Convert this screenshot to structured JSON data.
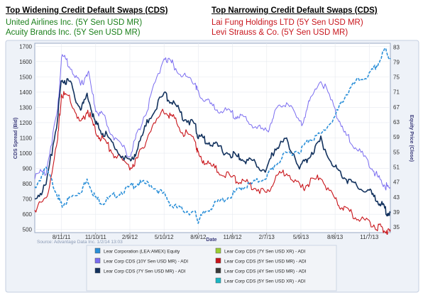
{
  "header": {
    "left_title": "Top Widening Credit Default Swaps (CDS)",
    "left_items": [
      "United Airlines Inc. (5Y Sen USD MR)",
      "Acuity Brands Inc. (5Y Sen USD MR)"
    ],
    "right_title": "Top Narrowing Credit Default Swaps (CDS)",
    "right_items": [
      "Lai Fung Holdings LTD (5Y Sen USD MR)",
      "Levi Strauss & Co. (5Y Sen USD MR)"
    ]
  },
  "colors": {
    "equity": "#2a8fd8",
    "cds10y": "#7a6cf0",
    "cds7y": "#13325e",
    "cds5y": "#c8141a",
    "panel": "#d0dcec",
    "green": "#1a7f1a",
    "red": "#c8161d"
  },
  "chart_data": {
    "type": "line",
    "ylabel": "CDS Spread (Bid)",
    "y2label": "Equity Price (Close)",
    "xlabel": "Date",
    "source": "Source: Advantage Data Inc. 1/2/14 13:03",
    "ylim": [
      480,
      1720
    ],
    "y2lim": [
      33.5,
      84
    ],
    "yticks": [
      500,
      600,
      700,
      800,
      900,
      1000,
      1100,
      1200,
      1300,
      1400,
      1500,
      1600,
      1700
    ],
    "y2ticks": [
      35,
      39,
      43,
      47,
      51,
      55,
      59,
      63,
      67,
      71,
      75,
      79,
      83
    ],
    "xlim": [
      "2011-06-01",
      "2014-01-02"
    ],
    "xticks": [
      "8/11/11",
      "11/10/11",
      "2/9/12",
      "5/10/12",
      "8/9/12",
      "11/8/12",
      "2/7/13",
      "5/9/13",
      "8/8/13",
      "11/7/13"
    ],
    "grid": true,
    "series": [
      {
        "name": "Lear Corporation (LEA:AMEX) Equity",
        "axis": "right",
        "x": [
          "2011-06-01",
          "2011-07-01",
          "2011-08-01",
          "2011-08-11",
          "2011-09-01",
          "2011-10-01",
          "2011-10-20",
          "2011-11-10",
          "2011-12-01",
          "2012-01-01",
          "2012-02-09",
          "2012-03-01",
          "2012-04-01",
          "2012-05-10",
          "2012-06-01",
          "2012-07-01",
          "2012-08-01",
          "2012-08-09",
          "2012-09-01",
          "2012-10-01",
          "2012-11-08",
          "2012-12-01",
          "2013-01-01",
          "2013-02-07",
          "2013-03-01",
          "2013-04-01",
          "2013-05-09",
          "2013-06-01",
          "2013-07-01",
          "2013-08-08",
          "2013-09-01",
          "2013-10-01",
          "2013-11-07",
          "2013-12-01",
          "2013-12-20",
          "2014-01-02"
        ],
        "values": [
          46,
          51,
          44,
          41,
          43,
          45,
          48,
          43,
          42,
          44,
          46,
          47,
          47,
          44,
          41,
          40,
          39,
          37,
          40,
          42,
          44,
          46,
          47,
          49,
          52,
          55,
          56,
          59,
          60,
          65,
          70,
          74,
          76,
          79,
          83,
          80
        ]
      },
      {
        "name": "Lear Corp CDS (10Y Sen USD MR) - ADI",
        "axis": "left",
        "x": [
          "2011-06-01",
          "2011-07-01",
          "2011-08-01",
          "2011-08-11",
          "2011-09-01",
          "2011-10-01",
          "2011-10-20",
          "2011-11-10",
          "2011-12-01",
          "2012-01-01",
          "2012-02-09",
          "2012-03-01",
          "2012-04-01",
          "2012-05-10",
          "2012-06-01",
          "2012-07-01",
          "2012-08-01",
          "2012-08-09",
          "2012-09-01",
          "2012-10-01",
          "2012-11-08",
          "2012-12-01",
          "2013-01-01",
          "2013-02-07",
          "2013-03-01",
          "2013-04-01",
          "2013-05-09",
          "2013-06-01",
          "2013-07-01",
          "2013-08-08",
          "2013-09-01",
          "2013-10-01",
          "2013-11-07",
          "2013-12-01",
          "2013-12-20",
          "2014-01-02"
        ],
        "values": [
          860,
          900,
          1300,
          1650,
          1600,
          1450,
          1550,
          1300,
          1250,
          1100,
          1000,
          1150,
          1350,
          1650,
          1600,
          1520,
          1480,
          1400,
          1350,
          1300,
          1270,
          1250,
          1200,
          1150,
          1280,
          1350,
          1200,
          1350,
          1500,
          1300,
          1150,
          1050,
          950,
          850,
          800,
          770
        ]
      },
      {
        "name": "Lear Corp CDS (7Y Sen USD MR) - ADI",
        "axis": "left",
        "x": [
          "2011-06-01",
          "2011-07-01",
          "2011-08-01",
          "2011-08-11",
          "2011-09-01",
          "2011-10-01",
          "2011-10-20",
          "2011-11-10",
          "2011-12-01",
          "2012-01-01",
          "2012-02-09",
          "2012-03-01",
          "2012-04-01",
          "2012-05-10",
          "2012-06-01",
          "2012-07-01",
          "2012-08-01",
          "2012-08-09",
          "2012-09-01",
          "2012-10-01",
          "2012-11-08",
          "2012-12-01",
          "2013-01-01",
          "2013-02-07",
          "2013-03-01",
          "2013-04-01",
          "2013-05-09",
          "2013-06-01",
          "2013-07-01",
          "2013-08-08",
          "2013-09-01",
          "2013-10-01",
          "2013-11-07",
          "2013-12-01",
          "2013-12-20",
          "2014-01-02"
        ],
        "values": [
          720,
          800,
          1250,
          1500,
          1480,
          1300,
          1400,
          1200,
          1150,
          1050,
          950,
          1050,
          1250,
          1400,
          1350,
          1250,
          1200,
          1120,
          1100,
          1050,
          1000,
          980,
          950,
          900,
          1050,
          1100,
          920,
          1000,
          1100,
          920,
          860,
          800,
          760,
          700,
          640,
          610
        ]
      },
      {
        "name": "Lear Corp CDS (5Y Sen USD MR) - ADI",
        "axis": "left",
        "x": [
          "2011-06-01",
          "2011-07-01",
          "2011-08-01",
          "2011-08-11",
          "2011-09-01",
          "2011-10-01",
          "2011-10-20",
          "2011-11-10",
          "2011-12-01",
          "2012-01-01",
          "2012-02-09",
          "2012-03-01",
          "2012-04-01",
          "2012-05-10",
          "2012-06-01",
          "2012-07-01",
          "2012-08-01",
          "2012-08-09",
          "2012-09-01",
          "2012-10-01",
          "2012-11-08",
          "2012-12-01",
          "2013-01-01",
          "2013-02-07",
          "2013-03-01",
          "2013-04-01",
          "2013-05-09",
          "2013-06-01",
          "2013-07-01",
          "2013-08-08",
          "2013-09-01",
          "2013-10-01",
          "2013-11-07",
          "2013-12-01",
          "2013-12-20",
          "2014-01-02"
        ],
        "values": [
          650,
          700,
          1100,
          1400,
          1380,
          1200,
          1300,
          1150,
          1100,
          1000,
          920,
          980,
          1150,
          1300,
          1250,
          1150,
          1100,
          1000,
          950,
          900,
          850,
          830,
          800,
          750,
          850,
          900,
          780,
          820,
          860,
          700,
          650,
          600,
          560,
          530,
          510,
          500
        ]
      },
      {
        "name": "Lear Corp CDS (7Y Sen USD XR) - ADI",
        "axis": "left",
        "x": [],
        "values": []
      },
      {
        "name": "Lear Corp CDS (5Y Sen USD XR) - ADI",
        "axis": "left",
        "x": [],
        "values": []
      },
      {
        "name": "Lear Corp CDS (4Y Sen USD MR) - ADI",
        "axis": "left",
        "x": [],
        "values": []
      },
      {
        "name": "Lear Corp CDS (5Y Sen USD XR) - ADI",
        "axis": "left",
        "x": [],
        "values": []
      }
    ]
  }
}
